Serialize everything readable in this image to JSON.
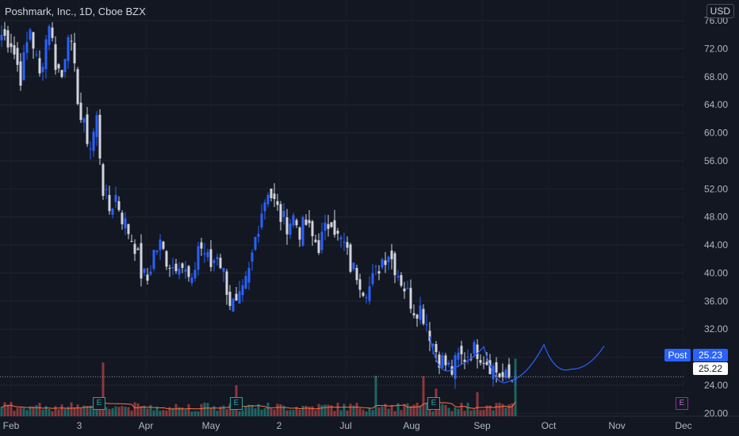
{
  "header": {
    "title": "Poshmark, Inc., 1D, Cboe BZX",
    "currency": "USD"
  },
  "price_tags": {
    "post_label": "Post",
    "post_value": "25.23",
    "last_value": "25.22"
  },
  "earnings_label": "E",
  "chart_data": {
    "type": "candlestick",
    "title": "Poshmark, Inc., 1D, Cboe BZX",
    "y_ticks": [
      "76.00",
      "72.00",
      "68.00",
      "64.00",
      "60.00",
      "56.00",
      "52.00",
      "48.00",
      "44.00",
      "40.00",
      "36.00",
      "32.00",
      "28.00",
      "24.00",
      "20.00"
    ],
    "x_ticks": [
      "Feb",
      "3",
      "Apr",
      "May",
      "2",
      "Jul",
      "Aug",
      "Sep",
      "Oct",
      "Nov",
      "Dec"
    ],
    "ylim": [
      19,
      77
    ],
    "grid": true,
    "colors": {
      "up": "#2962ff",
      "down": "#d1d4dc",
      "drawing": "#2962ff",
      "vol_up": "#26a69a",
      "vol_down": "#ef5350",
      "vol_ma": "#ff7043"
    },
    "close_path": [
      [
        0,
        74
      ],
      [
        3,
        73
      ],
      [
        6,
        68
      ],
      [
        9,
        75
      ],
      [
        12,
        68
      ],
      [
        15,
        76
      ],
      [
        17,
        70
      ],
      [
        19,
        68
      ],
      [
        21,
        75
      ],
      [
        25,
        62
      ],
      [
        28,
        58
      ],
      [
        30,
        62
      ],
      [
        32,
        52
      ],
      [
        34,
        49
      ],
      [
        36,
        51
      ],
      [
        38,
        48
      ],
      [
        40,
        46
      ],
      [
        42,
        44
      ],
      [
        44,
        40
      ],
      [
        46,
        39
      ],
      [
        48,
        43
      ],
      [
        50,
        44
      ],
      [
        52,
        42
      ],
      [
        54,
        41
      ],
      [
        56,
        42
      ],
      [
        58,
        40
      ],
      [
        60,
        38
      ],
      [
        62,
        44
      ],
      [
        64,
        43
      ],
      [
        66,
        41
      ],
      [
        68,
        43
      ],
      [
        70,
        40
      ],
      [
        72,
        36
      ],
      [
        74,
        35
      ],
      [
        76,
        37
      ],
      [
        78,
        40
      ],
      [
        80,
        45
      ],
      [
        82,
        49
      ],
      [
        84,
        52
      ],
      [
        86,
        50
      ],
      [
        88,
        48
      ],
      [
        90,
        47
      ],
      [
        92,
        48
      ],
      [
        94,
        46
      ],
      [
        96,
        47
      ],
      [
        98,
        45
      ],
      [
        100,
        44
      ],
      [
        102,
        46
      ],
      [
        104,
        48
      ],
      [
        106,
        45
      ],
      [
        108,
        44
      ],
      [
        110,
        41
      ],
      [
        112,
        40
      ],
      [
        114,
        38
      ],
      [
        116,
        38
      ],
      [
        118,
        40
      ],
      [
        120,
        42
      ],
      [
        122,
        43
      ],
      [
        124,
        41
      ],
      [
        126,
        39
      ],
      [
        128,
        37
      ],
      [
        130,
        35
      ],
      [
        132,
        35
      ],
      [
        134,
        33
      ],
      [
        136,
        30
      ],
      [
        138,
        28
      ],
      [
        140,
        27
      ],
      [
        142,
        26
      ],
      [
        144,
        28
      ],
      [
        146,
        28
      ],
      [
        148,
        29
      ],
      [
        150,
        29
      ],
      [
        152,
        28
      ],
      [
        154,
        27
      ],
      [
        156,
        26
      ],
      [
        158,
        25
      ],
      [
        160,
        25
      ],
      [
        162,
        25
      ]
    ],
    "drawn_pattern": [
      [
        26.5,
        31
      ],
      [
        26,
        27
      ],
      [
        26.5,
        30
      ],
      [
        26.5,
        26
      ],
      [
        27,
        29.5
      ],
      [
        27.5,
        26
      ],
      [
        28,
        28.5
      ]
    ]
  }
}
